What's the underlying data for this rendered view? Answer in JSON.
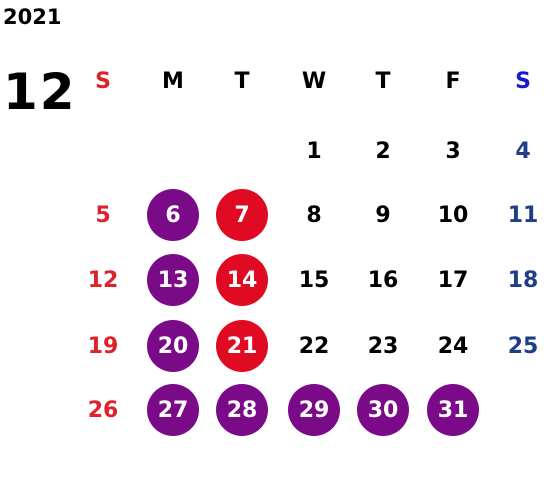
{
  "header": {
    "year": "2021",
    "month": "12"
  },
  "weekdays": [
    "S",
    "M",
    "T",
    "W",
    "T",
    "F",
    "S"
  ],
  "weeks": [
    [
      "",
      "",
      "",
      "1",
      "2",
      "3",
      "4"
    ],
    [
      "5",
      "6",
      "7",
      "8",
      "9",
      "10",
      "11"
    ],
    [
      "12",
      "13",
      "14",
      "15",
      "16",
      "17",
      "18"
    ],
    [
      "19",
      "20",
      "21",
      "22",
      "23",
      "24",
      "25"
    ],
    [
      "26",
      "27",
      "28",
      "29",
      "30",
      "31",
      ""
    ]
  ],
  "colors": {
    "sunday": "#e0202a",
    "saturday_header": "#1a1acc",
    "saturday": "#1f3d8a",
    "weekday": "#000000",
    "highlight_purple": "#7a0a88",
    "highlight_red": "#e10a23"
  },
  "highlights": {
    "6": "purple",
    "13": "purple",
    "20": "purple",
    "27": "purple",
    "7": "red",
    "14": "red",
    "21": "red",
    "28": "purple",
    "29": "purple",
    "30": "purple",
    "31": "purple"
  }
}
